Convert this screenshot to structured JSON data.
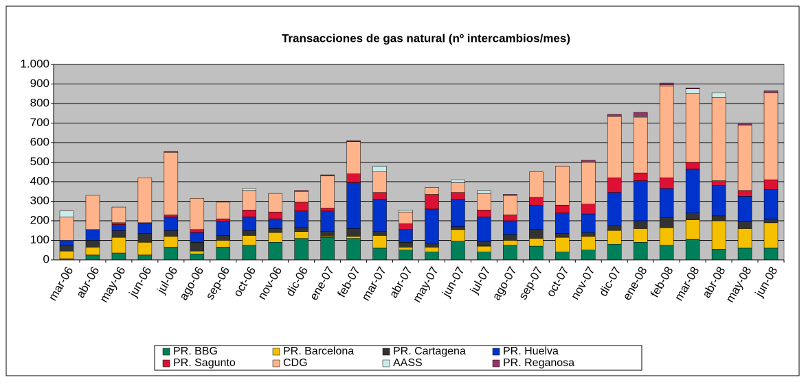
{
  "chart_data": {
    "type": "bar",
    "stacked": true,
    "title": "Transacciones de gas natural (nº intercambios/mes)",
    "categories": [
      "mar-06",
      "abr-06",
      "may-06",
      "jun-06",
      "jul-06",
      "ago-06",
      "sep-06",
      "oct-06",
      "nov-06",
      "dic-06",
      "ene-07",
      "feb-07",
      "mar-07",
      "abr-07",
      "may-07",
      "jun-07",
      "jul-07",
      "ago-07",
      "sep-07",
      "oct-07",
      "nov-07",
      "dic-07",
      "ene-08",
      "feb-08",
      "mar-08",
      "abr-08",
      "may-08",
      "jun-08"
    ],
    "series": [
      {
        "name": "PR. BBG",
        "color": "#00805a",
        "values": [
          5,
          25,
          35,
          25,
          65,
          30,
          65,
          75,
          90,
          110,
          115,
          110,
          60,
          50,
          40,
          95,
          40,
          75,
          70,
          40,
          50,
          80,
          90,
          75,
          105,
          55,
          60,
          60
        ]
      },
      {
        "name": "PR. Barcelona",
        "color": "#f5c000",
        "values": [
          40,
          40,
          80,
          65,
          55,
          15,
          35,
          50,
          50,
          35,
          5,
          10,
          65,
          15,
          25,
          60,
          30,
          25,
          40,
          75,
          70,
          70,
          70,
          90,
          100,
          145,
          100,
          130
        ]
      },
      {
        "name": "PR. Cartagena",
        "color": "#333333",
        "values": [
          30,
          35,
          35,
          45,
          30,
          45,
          25,
          25,
          20,
          20,
          25,
          40,
          20,
          25,
          20,
          15,
          25,
          30,
          45,
          20,
          20,
          25,
          40,
          50,
          35,
          25,
          35,
          20
        ]
      },
      {
        "name": "PR. Huelva",
        "color": "#0033cc",
        "values": [
          25,
          55,
          30,
          50,
          70,
          50,
          70,
          70,
          50,
          85,
          105,
          235,
          165,
          65,
          175,
          140,
          125,
          70,
          125,
          105,
          95,
          170,
          205,
          150,
          225,
          155,
          130,
          150
        ]
      },
      {
        "name": "PR. Sagunto",
        "color": "#dd1133",
        "values": [
          0,
          0,
          10,
          5,
          10,
          15,
          15,
          35,
          35,
          45,
          15,
          45,
          35,
          30,
          75,
          35,
          35,
          30,
          40,
          40,
          50,
          75,
          40,
          55,
          35,
          25,
          30,
          50
        ]
      },
      {
        "name": "CDG",
        "color": "#ffb38a",
        "values": [
          120,
          175,
          80,
          230,
          320,
          160,
          85,
          100,
          95,
          55,
          165,
          165,
          105,
          60,
          35,
          50,
          85,
          100,
          130,
          200,
          215,
          315,
          285,
          470,
          350,
          425,
          335,
          445
        ]
      },
      {
        "name": "AASS",
        "color": "#ccecec",
        "values": [
          30,
          0,
          0,
          0,
          0,
          0,
          0,
          10,
          0,
          0,
          0,
          0,
          30,
          10,
          0,
          15,
          15,
          0,
          0,
          0,
          0,
          0,
          5,
          5,
          25,
          25,
          0,
          0
        ]
      },
      {
        "name": "PR. Reganosa",
        "color": "#993366",
        "values": [
          0,
          0,
          0,
          0,
          5,
          0,
          0,
          0,
          0,
          5,
          5,
          5,
          0,
          0,
          0,
          0,
          0,
          5,
          0,
          0,
          10,
          10,
          20,
          10,
          5,
          0,
          5,
          10
        ]
      }
    ],
    "ylim": [
      0,
      1000
    ],
    "yticks": [
      0,
      100,
      200,
      300,
      400,
      500,
      600,
      700,
      800,
      900,
      {
        "value": 1000,
        "label": "1.000"
      }
    ],
    "grid": true,
    "legend": "bottom"
  }
}
